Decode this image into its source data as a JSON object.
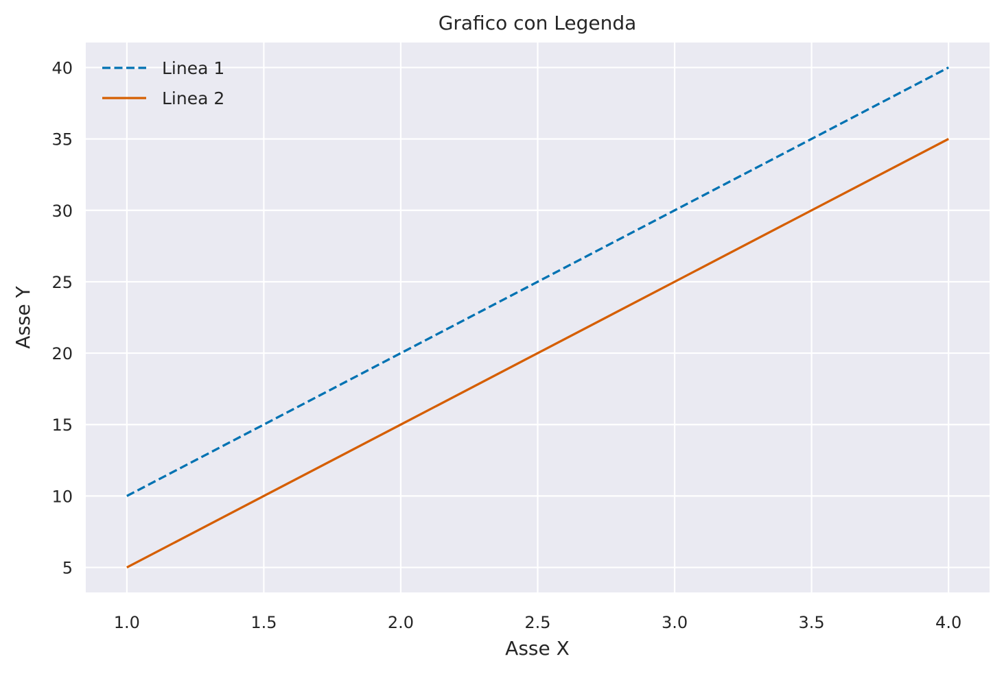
{
  "chart_data": {
    "type": "line",
    "title": "Grafico con Legenda",
    "xlabel": "Asse X",
    "ylabel": "Asse Y",
    "x": [
      1,
      2,
      3,
      4
    ],
    "xlim": [
      0.85,
      4.15
    ],
    "ylim": [
      3.25,
      41.75
    ],
    "xticks": [
      1.0,
      1.5,
      2.0,
      2.5,
      3.0,
      3.5,
      4.0
    ],
    "xtick_labels": [
      "1.0",
      "1.5",
      "2.0",
      "2.5",
      "3.0",
      "3.5",
      "4.0"
    ],
    "yticks": [
      5,
      10,
      15,
      20,
      25,
      30,
      35,
      40
    ],
    "ytick_labels": [
      "5",
      "10",
      "15",
      "20",
      "25",
      "30",
      "35",
      "40"
    ],
    "grid": true,
    "legend_position": "top-left",
    "plot_background": "#eaeaf2",
    "grid_color": "#ffffff",
    "series": [
      {
        "name": "Linea 1",
        "values": [
          10,
          20,
          30,
          40
        ],
        "color": "#0072b2",
        "style": "dashed"
      },
      {
        "name": "Linea 2",
        "values": [
          5,
          15,
          25,
          35
        ],
        "color": "#d55e00",
        "style": "solid"
      }
    ]
  }
}
